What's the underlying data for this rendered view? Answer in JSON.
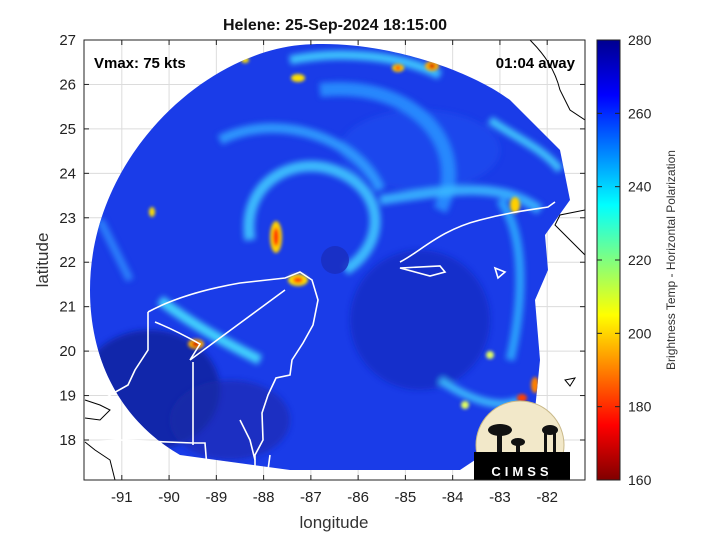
{
  "chart_data": {
    "type": "heatmap",
    "title": "Helene: 25-Sep-2024 18:15:00",
    "xlabel": "longitude",
    "ylabel": "latitude",
    "xlim": [
      -91.8,
      -81.2
    ],
    "ylim": [
      17.1,
      27
    ],
    "x_ticks": [
      "-91",
      "-90",
      "-89",
      "-88",
      "-87",
      "-86",
      "-85",
      "-84",
      "-83",
      "-82"
    ],
    "y_ticks": [
      "18",
      "19",
      "20",
      "21",
      "22",
      "23",
      "24",
      "25",
      "26",
      "27"
    ],
    "grid": true,
    "annotations": {
      "vmax": "Vmax: 75 kts",
      "time_away": "01:04 away"
    },
    "colorbar": {
      "label": "Brightness Temp - Horizontal Polarization",
      "range": [
        160,
        280
      ],
      "ticks": [
        "160",
        "180",
        "200",
        "220",
        "240",
        "260",
        "280"
      ],
      "colormap": [
        "#800000",
        "#ff0000",
        "#ff8000",
        "#ffff00",
        "#80ff80",
        "#00ffff",
        "#0080ff",
        "#0000ff",
        "#000090"
      ]
    },
    "storm_center": {
      "lon": -85.9,
      "lat": 22.2
    },
    "logo_text": "CIMSS"
  }
}
